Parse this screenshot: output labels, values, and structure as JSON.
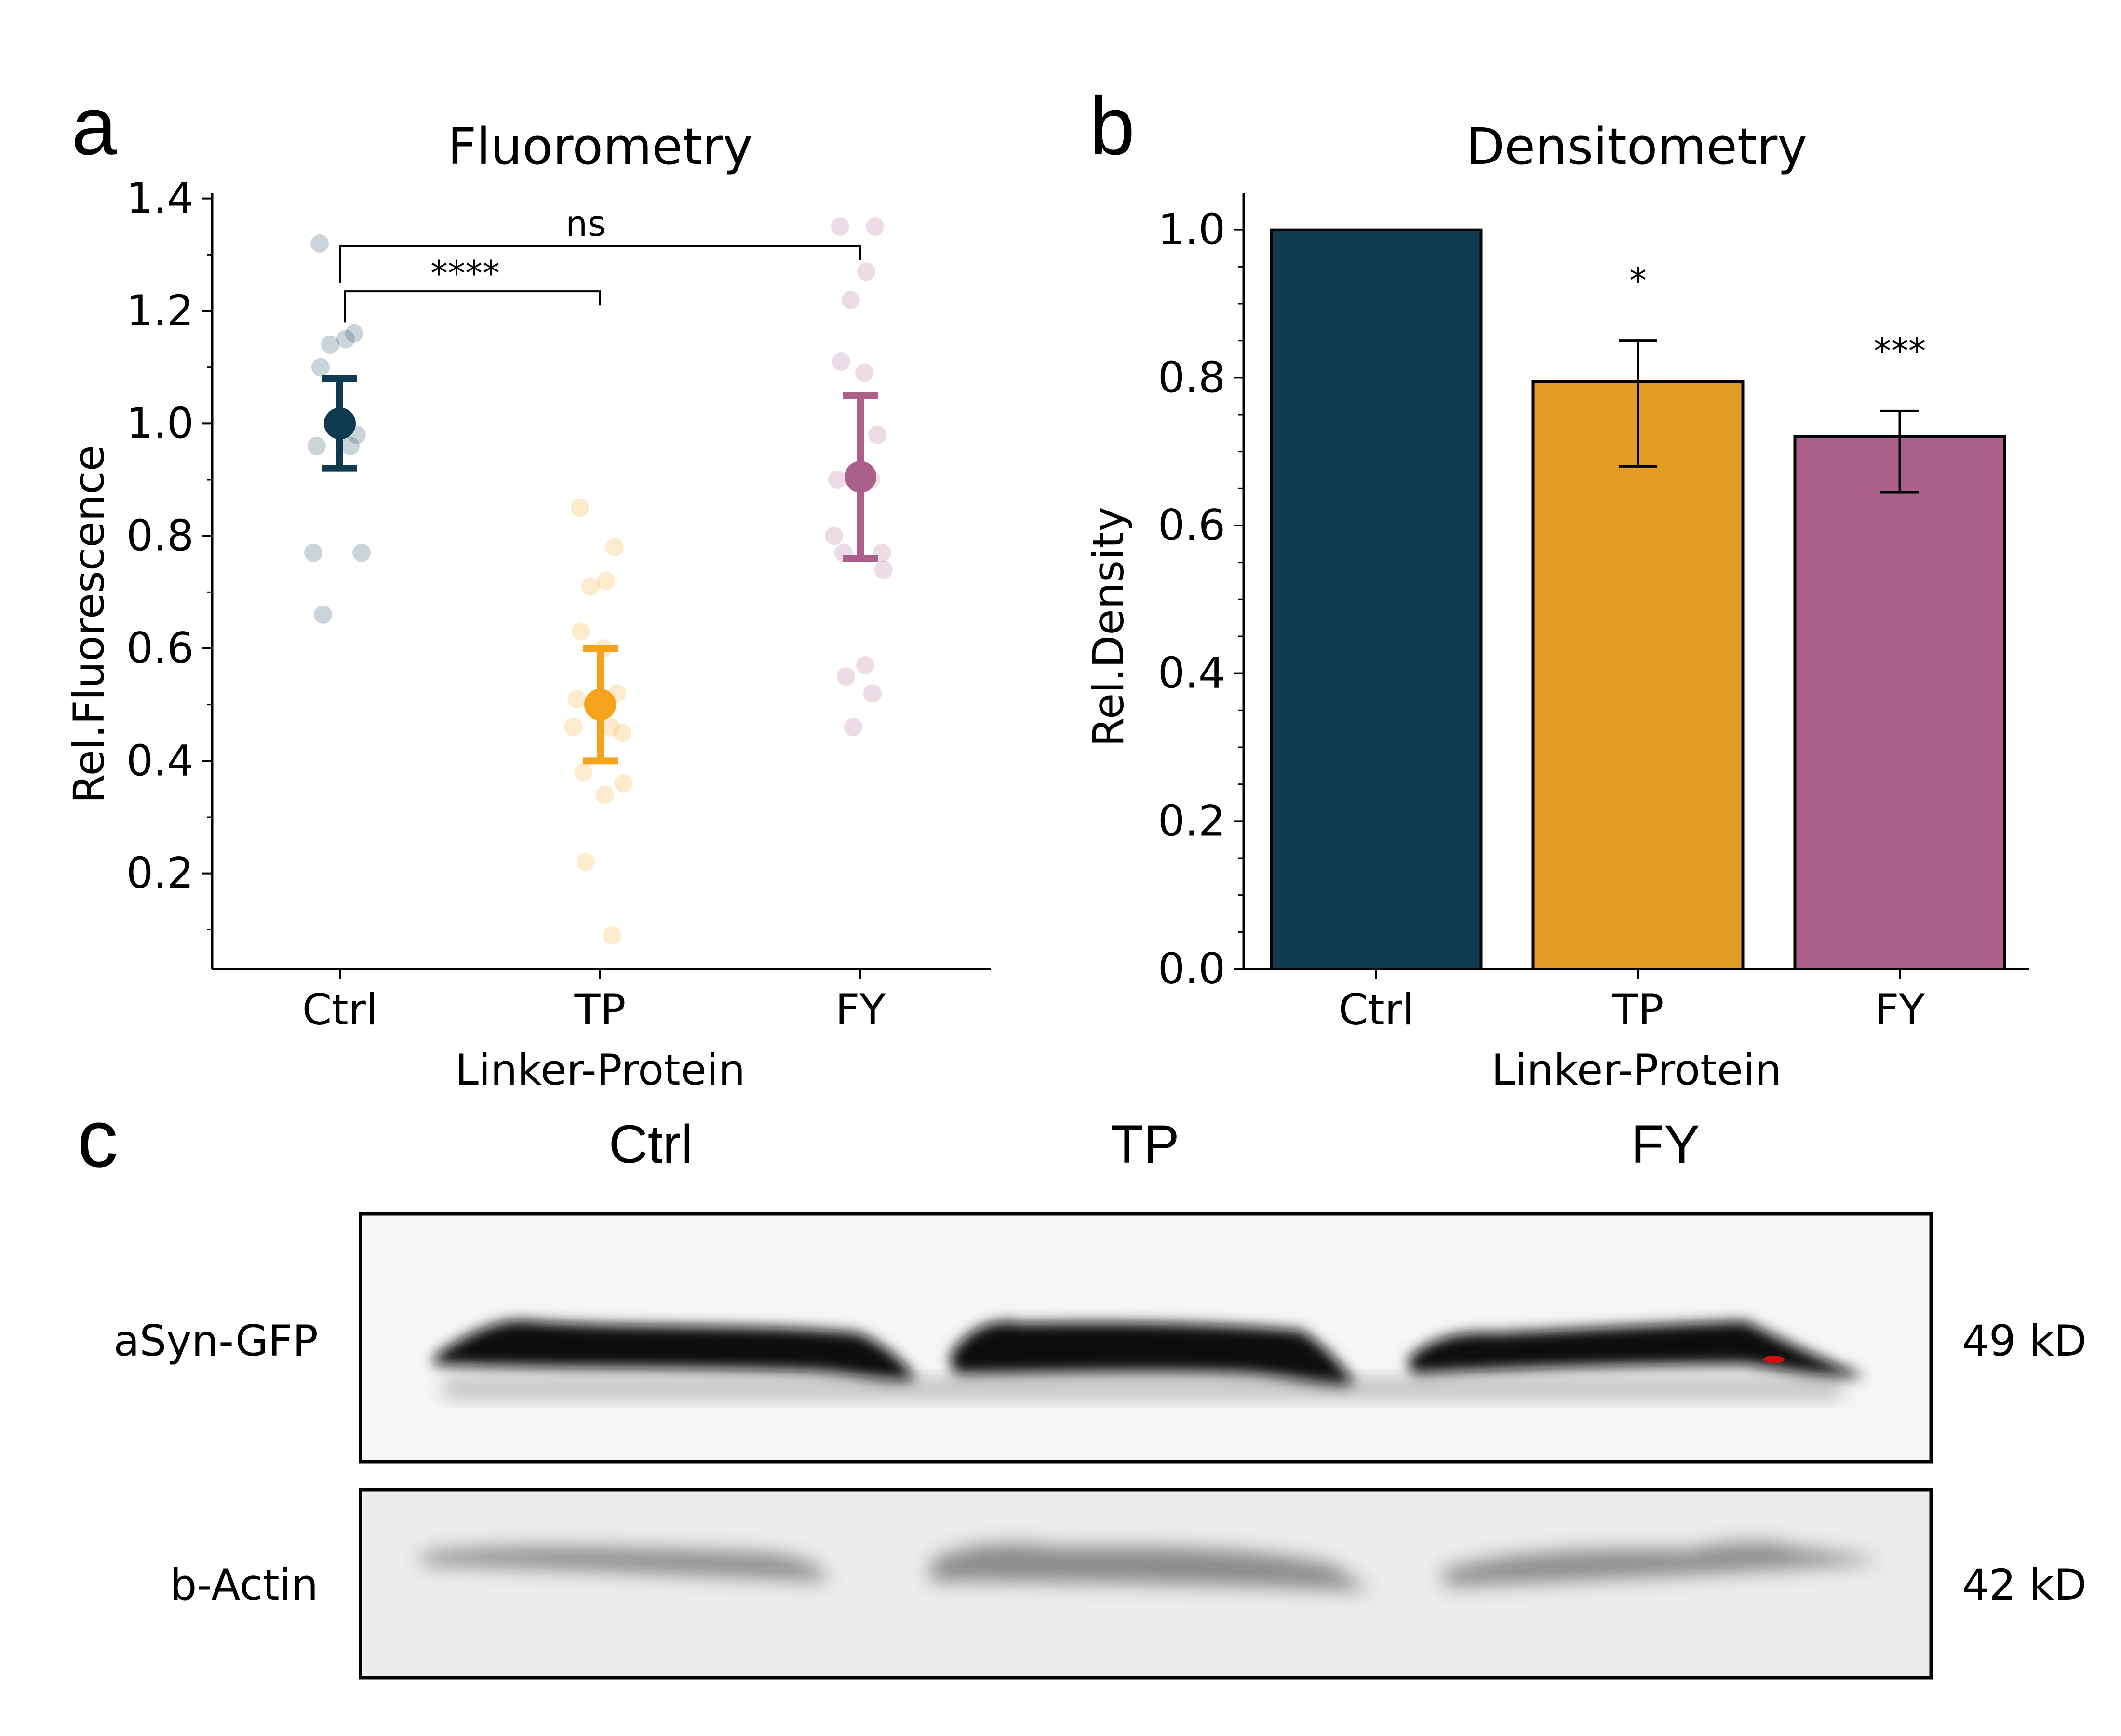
{
  "colors": {
    "ctrl": "#0f3a51",
    "tp": "#f5a31a",
    "fy": "#ad5f8c",
    "tp_bar": "#e09c24",
    "fy_bar": "#ad5f8c"
  },
  "chart_data": [
    {
      "panel": "a",
      "type": "scatter",
      "title": "Fluorometry",
      "xlabel": "Linker-Protein",
      "ylabel": "Rel.Fluorescence",
      "categories": [
        "Ctrl",
        "TP",
        "FY"
      ],
      "ylim": [
        0.03,
        1.41
      ],
      "yticks": [
        "0.2",
        "0.4",
        "0.6",
        "0.8",
        "1.0",
        "1.2",
        "1.4"
      ],
      "points": [
        [
          1.32,
          1.16,
          1.15,
          1.14,
          1.1,
          1.0,
          0.98,
          0.96,
          0.96,
          0.77,
          0.77,
          0.66
        ],
        [
          0.85,
          0.78,
          0.72,
          0.71,
          0.63,
          0.6,
          0.52,
          0.51,
          0.46,
          0.46,
          0.45,
          0.38,
          0.36,
          0.34,
          0.22,
          0.09
        ],
        [
          1.35,
          1.35,
          1.27,
          1.22,
          1.11,
          1.09,
          0.98,
          0.9,
          0.9,
          0.8,
          0.77,
          0.77,
          0.74,
          0.57,
          0.55,
          0.52,
          0.46
        ]
      ],
      "means": [
        1.0,
        0.5,
        0.905
      ],
      "errors": [
        [
          0.92,
          1.08
        ],
        [
          0.4,
          0.6
        ],
        [
          0.76,
          1.05
        ]
      ],
      "annotations": [
        {
          "text": "****",
          "from": "Ctrl",
          "to": "TP"
        },
        {
          "text": "ns",
          "from": "Ctrl",
          "to": "FY"
        }
      ]
    },
    {
      "panel": "b",
      "type": "bar",
      "title": "Densitometry",
      "xlabel": "Linker-Protein",
      "ylabel": "Rel.Density",
      "categories": [
        "Ctrl",
        "TP",
        "FY"
      ],
      "values": [
        1.0,
        0.795,
        0.72
      ],
      "errors": [
        null,
        [
          0.68,
          0.85
        ],
        [
          0.645,
          0.755
        ]
      ],
      "significance": [
        "",
        "*",
        "***"
      ],
      "ylim": [
        0,
        1.05
      ],
      "yticks": [
        "0.0",
        "0.2",
        "0.4",
        "0.6",
        "0.8",
        "1.0"
      ]
    }
  ],
  "blot": {
    "panel": "c",
    "lanes": [
      "Ctrl",
      "TP",
      "FY"
    ],
    "rows": [
      {
        "label": "aSyn-GFP",
        "size": "49 kD"
      },
      {
        "label": "b-Actin",
        "size": "42 kD"
      }
    ]
  }
}
